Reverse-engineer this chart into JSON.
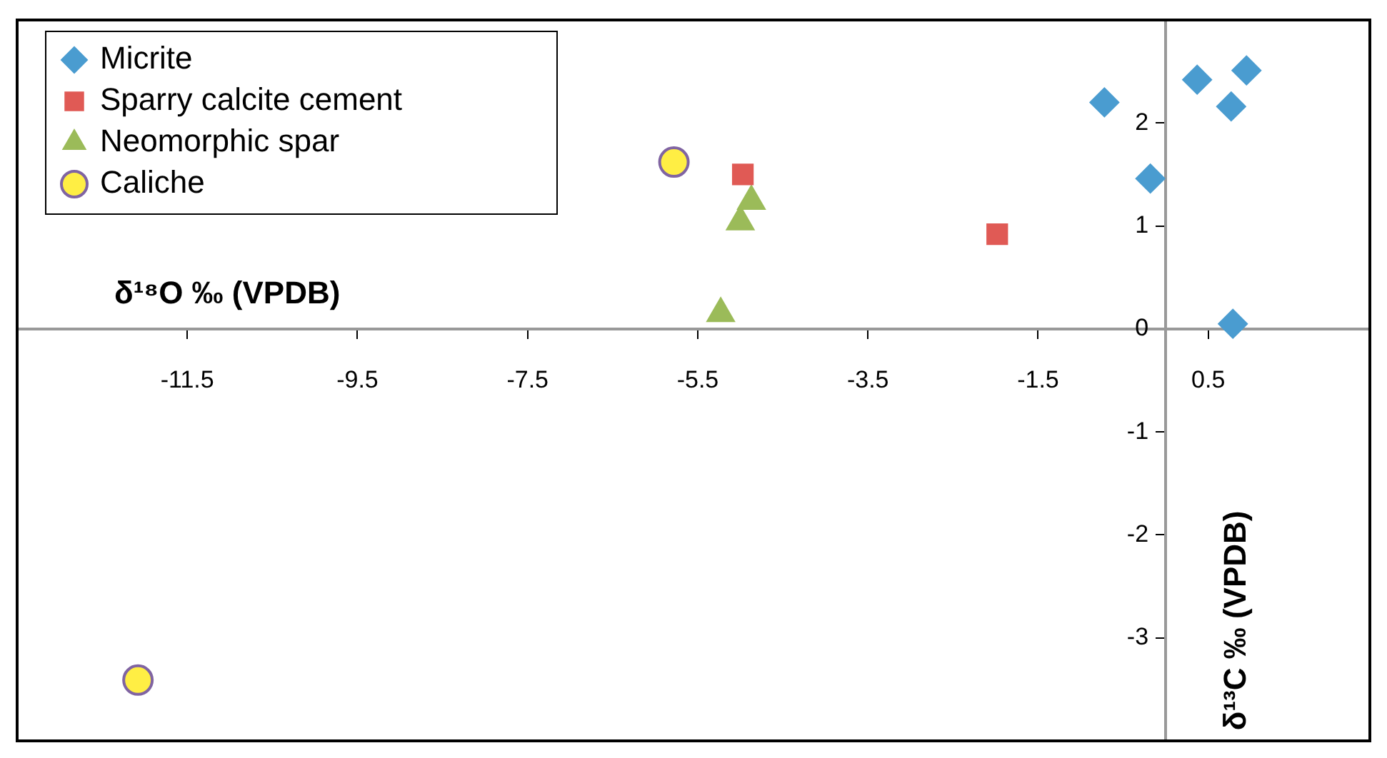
{
  "chart_data": {
    "type": "scatter",
    "xlabel": "δ¹⁸O ‰ (VPDB)",
    "ylabel": "δ¹³C ‰ (VPDB)",
    "xlim": [
      -13.5,
      2.4
    ],
    "ylim": [
      -4,
      3
    ],
    "xticks": [
      -11.5,
      -9.5,
      -7.5,
      -5.5,
      -3.5,
      -1.5,
      0.5
    ],
    "yticks": [
      -3,
      -2,
      -1,
      0,
      1,
      2
    ],
    "grid": false,
    "legend": "top left",
    "series": [
      {
        "name": "Micrite",
        "color": "#4a9cd0",
        "marker": "diamond",
        "x": [
          -0.72,
          -0.18,
          0.37,
          0.77,
          0.95,
          0.79
        ],
        "values": [
          2.2,
          1.46,
          2.42,
          2.16,
          2.51,
          0.05
        ]
      },
      {
        "name": "Sparry calcite cement",
        "color": "#e05a55",
        "marker": "square",
        "x": [
          -4.97,
          -1.98
        ],
        "values": [
          1.5,
          0.92
        ]
      },
      {
        "name": "Neomorphic spar",
        "color": "#9bbb59",
        "marker": "triangle",
        "x": [
          -4.87,
          -5.0,
          -5.23
        ],
        "values": [
          1.24,
          1.04,
          0.15
        ]
      },
      {
        "name": "Caliche",
        "color": "#ffee44",
        "marker": "circle",
        "x": [
          -5.78,
          -12.08
        ],
        "values": [
          1.62,
          -3.41
        ]
      }
    ]
  }
}
